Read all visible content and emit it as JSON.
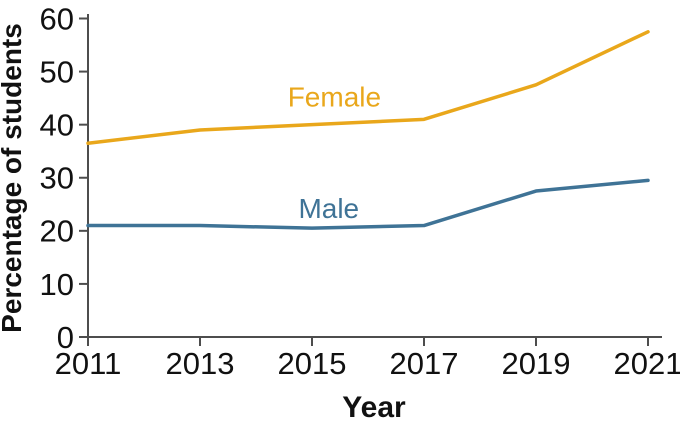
{
  "chart_data": {
    "type": "line",
    "title": "",
    "xlabel": "Year",
    "ylabel": "Percentage of students",
    "x": [
      2011,
      2013,
      2015,
      2017,
      2019,
      2021
    ],
    "x_tick_labels": [
      "2011",
      "2013",
      "2015",
      "2017",
      "2019",
      "2021"
    ],
    "y_ticks": [
      0,
      10,
      20,
      30,
      40,
      50,
      60
    ],
    "y_tick_labels": [
      "0",
      "10",
      "20",
      "30",
      "40",
      "50",
      "60"
    ],
    "xlim": [
      2011,
      2021
    ],
    "ylim": [
      0,
      60
    ],
    "grid": false,
    "legend_position": "inline-labels-on-lines",
    "series": [
      {
        "name": "Female",
        "color": "#E9A71B",
        "values": [
          36.5,
          39,
          40,
          41,
          47.5,
          57.5
        ],
        "label_x": 2015.4,
        "label_y": 45.3
      },
      {
        "name": "Male",
        "color": "#3F7396",
        "values": [
          21,
          21,
          20.5,
          21,
          27.5,
          29.5
        ],
        "label_x": 2015.3,
        "label_y": 24.3
      }
    ]
  },
  "colors": {
    "background": "#FFFFFF",
    "axis_line": "#4D4D4D",
    "tick": "#4D4D4D",
    "label_text": "#111111"
  }
}
